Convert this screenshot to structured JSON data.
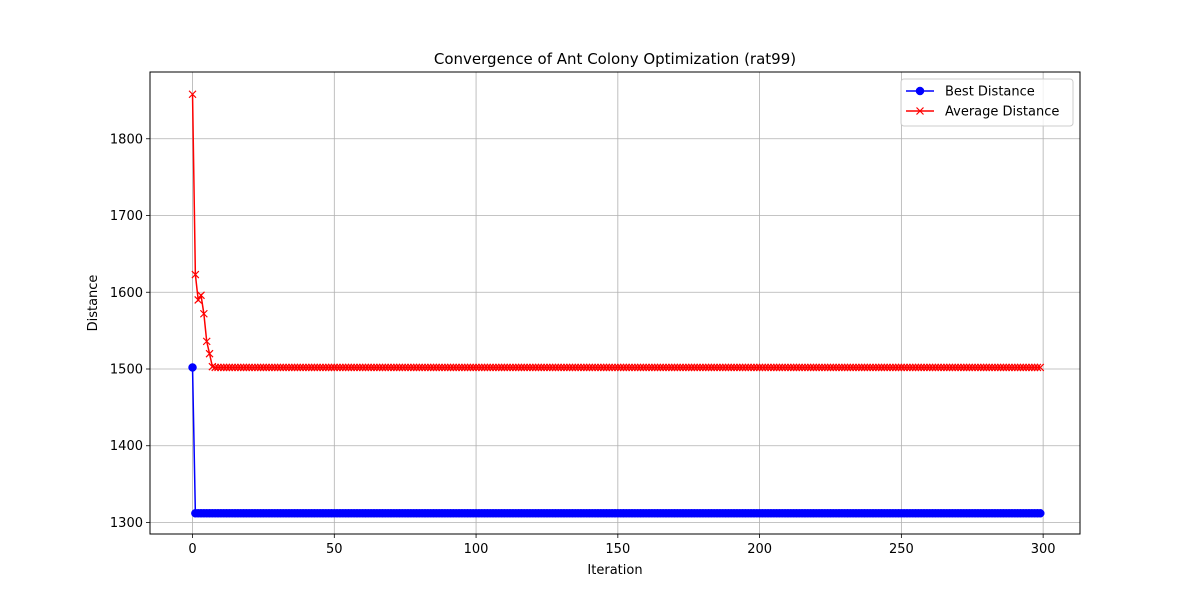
{
  "chart_data": {
    "type": "line",
    "title": "Convergence of Ant Colony Optimization (rat99)",
    "xlabel": "Iteration",
    "ylabel": "Distance",
    "xlim": [
      -15,
      313
    ],
    "ylim": [
      1285,
      1887
    ],
    "xticks": [
      0,
      50,
      100,
      150,
      200,
      250,
      300
    ],
    "yticks": [
      1300,
      1400,
      1500,
      1600,
      1700,
      1800
    ],
    "grid": true,
    "legend_position": "top-right",
    "series": [
      {
        "name": "Best Distance",
        "color": "#0000ff",
        "marker": "circle",
        "head": [
          1502,
          1312
        ],
        "tail_value": 1312,
        "n_points": 300
      },
      {
        "name": "Average Distance",
        "color": "#ff0000",
        "marker": "x",
        "head": [
          1858,
          1623,
          1590,
          1596,
          1572,
          1536,
          1520,
          1503
        ],
        "tail_value": 1502,
        "n_points": 300
      }
    ]
  }
}
